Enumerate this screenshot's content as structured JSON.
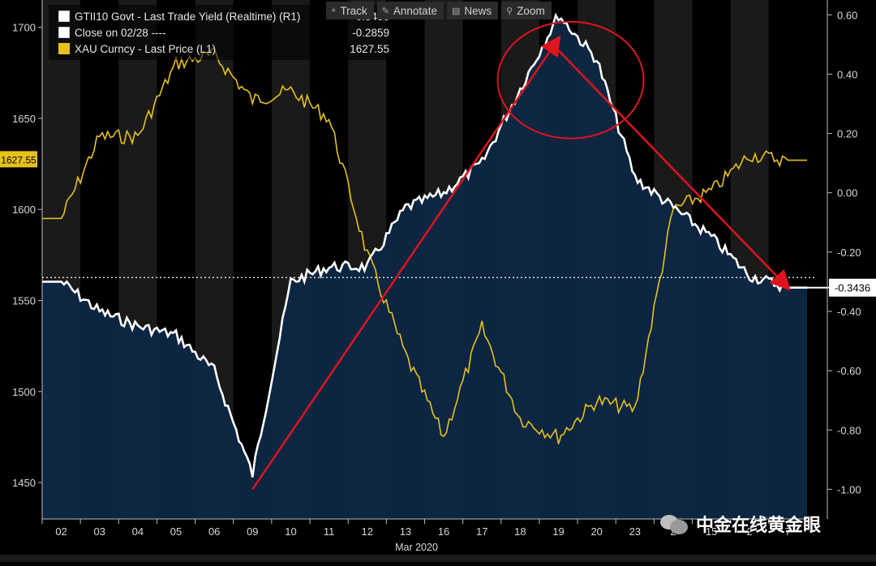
{
  "toolbar": {
    "track_label": "Track",
    "annotate_label": "Annotate",
    "news_label": "News",
    "zoom_label": "Zoom"
  },
  "legend": [
    {
      "label": "GTII10 Govt - Last Trade Yield (Realtime) (R1)",
      "value": "-0.3436"
    },
    {
      "label": "Close on 02/28 ----",
      "value": "-0.2859"
    },
    {
      "label": "XAU Curncy - Last Price (L1)",
      "value": "1627.55"
    }
  ],
  "watermark": {
    "text": "中金在线黄金眼"
  },
  "colors": {
    "background": "#000000",
    "shade_band": "#1a1a1a",
    "area_fill": "#0d2744",
    "yield_line": "#ffffff",
    "gold_line": "#e8c21a",
    "annotation": "#e0141e"
  },
  "chart_data": {
    "type": "line",
    "x_axis": {
      "label": "Mar 2020",
      "categories": [
        "02",
        "03",
        "04",
        "05",
        "06",
        "09",
        "10",
        "11",
        "12",
        "13",
        "16",
        "17",
        "18",
        "19",
        "20",
        "23",
        "24",
        "25",
        "26",
        "27"
      ],
      "tick_labels_shown": [
        "02",
        "03",
        "04",
        "05",
        "06",
        "09",
        "10",
        "11",
        "12",
        "13",
        "16",
        "17",
        "18",
        "19",
        "20",
        "23",
        "2",
        "15",
        "2",
        "7"
      ]
    },
    "y_left": {
      "label": "",
      "ticks": [
        1450,
        1500,
        1550,
        1600,
        1650,
        1700
      ],
      "range": [
        1430,
        1715
      ],
      "current_marker": "1627.55"
    },
    "y_right": {
      "label": "",
      "ticks": [
        "0.60",
        "0.40",
        "0.20",
        "0.00",
        "-0.20",
        "-0.40",
        "-0.60",
        "-0.80",
        "-1.00"
      ],
      "range": [
        -1.1,
        0.65
      ],
      "current_marker": "-0.3436"
    },
    "series": [
      {
        "name": "GTII10 Govt - Last Trade Yield (Realtime)",
        "axis": "right",
        "style": "area",
        "values": [
          -0.3,
          -0.4,
          -0.45,
          -0.48,
          -0.6,
          -0.95,
          -0.3,
          -0.25,
          -0.25,
          -0.05,
          0.0,
          0.1,
          0.35,
          0.6,
          0.45,
          0.05,
          -0.05,
          -0.15,
          -0.28,
          -0.32
        ]
      },
      {
        "name": "XAU Curncy - Last Price",
        "axis": "left",
        "style": "line",
        "values": [
          1595,
          1640,
          1640,
          1680,
          1685,
          1660,
          1665,
          1650,
          1575,
          1520,
          1475,
          1535,
          1485,
          1475,
          1495,
          1490,
          1600,
          1610,
          1630,
          1627
        ]
      },
      {
        "name": "Close on 02/28",
        "axis": "right",
        "style": "dotted",
        "values": [
          -0.2859
        ]
      }
    ],
    "annotations": [
      {
        "type": "arrow",
        "from": {
          "x": "09",
          "y": -1.0
        },
        "to": {
          "x": "19",
          "y": 0.52
        }
      },
      {
        "type": "arrow",
        "from": {
          "x": "19",
          "y": 0.48
        },
        "to": {
          "x": "27",
          "y": -0.32
        }
      },
      {
        "type": "circle",
        "center": {
          "x": "19",
          "y": 0.38
        }
      }
    ],
    "grid": false,
    "legend_position": "top-left"
  }
}
